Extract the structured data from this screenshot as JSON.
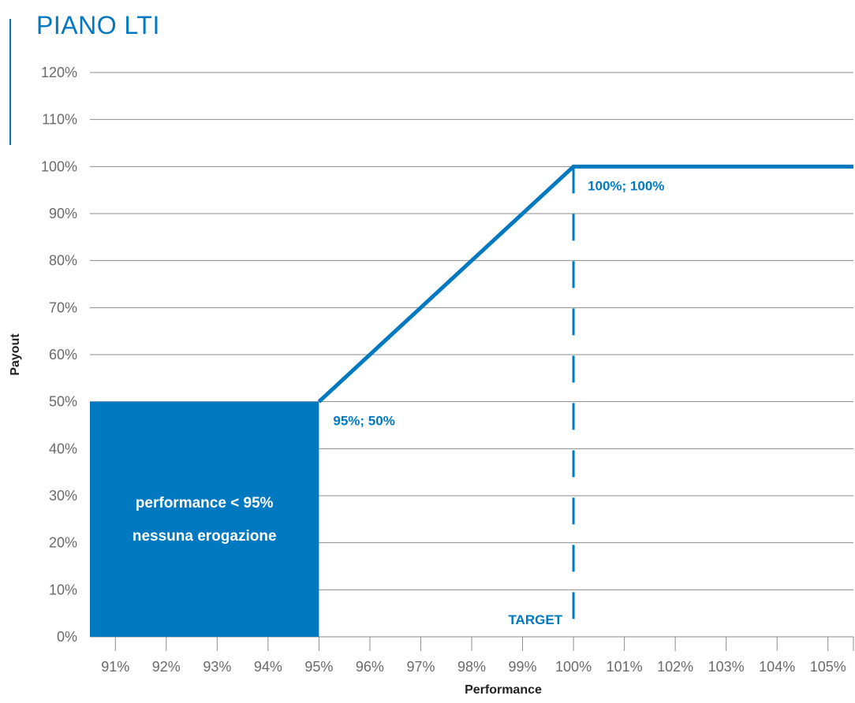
{
  "title": "PIANO LTI",
  "colors": {
    "accent": "#0079c0",
    "grid": "#8c8c8c",
    "text": "#6a6a6a"
  },
  "chart_data": {
    "type": "line",
    "title": "PIANO LTI",
    "xlabel": "Performance",
    "ylabel": "Payout",
    "x_ticks": [
      "91%",
      "92%",
      "93%",
      "94%",
      "95%",
      "96%",
      "97%",
      "98%",
      "99%",
      "100%",
      "101%",
      "102%",
      "103%",
      "104%",
      "105%"
    ],
    "y_ticks": [
      "0%",
      "10%",
      "20%",
      "30%",
      "40%",
      "50%",
      "60%",
      "70%",
      "80%",
      "90%",
      "100%",
      "110%",
      "120%"
    ],
    "xlim": [
      90.5,
      105.5
    ],
    "ylim": [
      0,
      120
    ],
    "grid": true,
    "series": [
      {
        "x": [
          95,
          100,
          105.5
        ],
        "y": [
          50,
          100,
          100
        ]
      }
    ],
    "region": {
      "x": [
        90.5,
        95
      ],
      "y": [
        0,
        50
      ],
      "label_lines": [
        "performance < 95%",
        "nessuna erogazione"
      ]
    },
    "target": {
      "x": 100,
      "label": "TARGET"
    },
    "annotations": [
      {
        "x": 95,
        "y": 50,
        "text": "95%; 50%"
      },
      {
        "x": 100,
        "y": 100,
        "text": "100%; 100%"
      }
    ]
  }
}
